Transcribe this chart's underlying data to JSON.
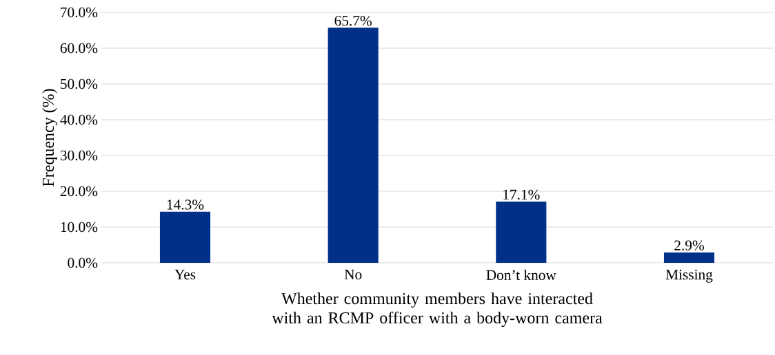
{
  "chart_data": {
    "type": "bar",
    "xlabel": "Whether community members have interacted with an RCMP officer with a body-worn camera",
    "ylabel": "Frequency (%)",
    "categories": [
      "Yes",
      "No",
      "Don’t know",
      "Missing"
    ],
    "values": [
      14.3,
      65.7,
      17.1,
      2.9
    ],
    "value_labels": [
      "14.3%",
      "65.7%",
      "17.1%",
      "2.9%"
    ],
    "color": "#003087",
    "ylim": [
      0,
      70
    ],
    "yticks": [
      {
        "value": 0,
        "label": "0.0%"
      },
      {
        "value": 10,
        "label": "10.0%"
      },
      {
        "value": 20,
        "label": "20.0%"
      },
      {
        "value": 30,
        "label": "30.0%"
      },
      {
        "value": 40,
        "label": "40.0%"
      },
      {
        "value": 50,
        "label": "50.0%"
      },
      {
        "value": 60,
        "label": "60.0%"
      },
      {
        "value": 70,
        "label": "70.0%"
      }
    ],
    "grid": "y"
  }
}
